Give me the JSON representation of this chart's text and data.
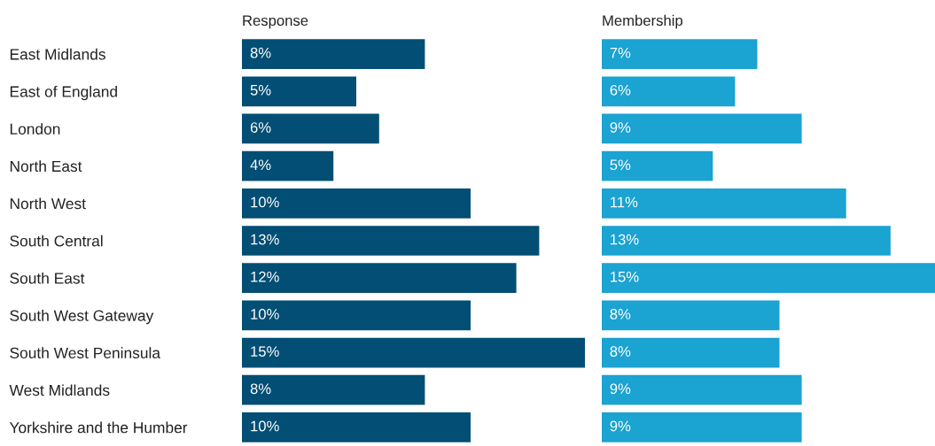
{
  "chart_data": [
    {
      "type": "bar",
      "orientation": "horizontal",
      "title": "Response",
      "tick_labels": "y",
      "grid": false,
      "legend": false,
      "categories": [
        "East Midlands",
        "East of England",
        "London",
        "North East",
        "North West",
        "South Central",
        "South East",
        "South West Gateway",
        "South West Peninsula",
        "West Midlands",
        "Yorkshire and the Humber"
      ],
      "series": [
        {
          "color": "#034e74",
          "values": [
            8,
            5,
            6,
            4,
            10,
            13,
            12,
            10,
            15,
            8,
            10
          ],
          "value_labels": [
            "8%",
            "5%",
            "6%",
            "4%",
            "10%",
            "13%",
            "12%",
            "10%",
            "15%",
            "8%",
            "10%"
          ]
        }
      ]
    },
    {
      "type": "bar",
      "orientation": "horizontal",
      "title": "Membership",
      "tick_labels": false,
      "grid": false,
      "legend": false,
      "categories": [
        null,
        null,
        null,
        null,
        null,
        null,
        null,
        null,
        null,
        null,
        null
      ],
      "series": [
        {
          "color": "#1ba3d1",
          "values": [
            7,
            6,
            9,
            5,
            11,
            13,
            15,
            8,
            8,
            9,
            9
          ],
          "value_labels": [
            "7%",
            "6%",
            "9%",
            "5%",
            "11%",
            "13%",
            "15%",
            "8%",
            "8%",
            "9%",
            "9%"
          ]
        }
      ]
    }
  ]
}
